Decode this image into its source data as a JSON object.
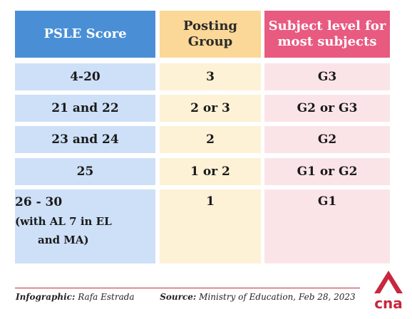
{
  "table": {
    "headers": [
      "PSLE Score",
      "Posting\nGroup",
      "Subject level for\nmost subjects"
    ],
    "rows": [
      {
        "score": "4-20",
        "group": "3",
        "level": "G3"
      },
      {
        "score": "21 and 22",
        "group": "2 or 3",
        "level": "G2 or G3"
      },
      {
        "score": "23 and 24",
        "group": "2",
        "level": "G2"
      },
      {
        "score": "25",
        "group": "1 or 2",
        "level": "G1 or G2"
      },
      {
        "score": "26 - 30",
        "score_note": "(with AL 7 in EL\nand MA)",
        "group": "1",
        "level": "G1"
      }
    ]
  },
  "footer": {
    "infographic_label": "Infographic:",
    "infographic_value": "Rafa Estrada",
    "source_label": "Source:",
    "source_value": "Ministry of Education, Feb 28, 2023"
  },
  "logo": {
    "text": "cna",
    "color": "#c8273e"
  }
}
